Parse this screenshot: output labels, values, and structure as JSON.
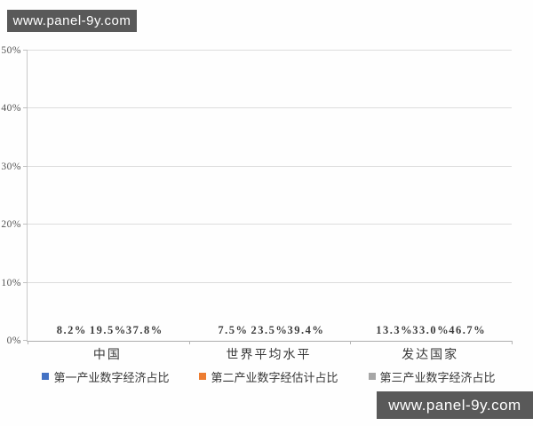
{
  "watermarks": {
    "top": "www.panel-9y.com",
    "bottom": "www.panel-9y.com"
  },
  "chart_data": {
    "type": "bar",
    "title": "",
    "categories": [
      "中国",
      "世界平均水平",
      "发达国家"
    ],
    "series": [
      {
        "name": "第一产业数字经济占比",
        "color": "#4472C4",
        "values": [
          8.2,
          7.5,
          13.3
        ],
        "labels": [
          "8.2%",
          "7.5%",
          "13.3%"
        ]
      },
      {
        "name": "第二产业数字经估计占比",
        "color": "#ED7D31",
        "values": [
          19.5,
          23.5,
          33.0
        ],
        "labels": [
          "19.5%",
          "23.5%",
          "33.0%"
        ]
      },
      {
        "name": "第三产业数字经济占比",
        "color": "#A6A6A6",
        "values": [
          37.8,
          39.4,
          46.7
        ],
        "labels": [
          "37.8%",
          "39.4%",
          "46.7%"
        ]
      }
    ],
    "xlabel": "",
    "ylabel": "",
    "ylim": [
      0,
      50
    ],
    "y_ticks": [
      "0%",
      "10%",
      "20%",
      "30%",
      "40%",
      "50%"
    ],
    "grid": true,
    "legend_position": "bottom"
  }
}
